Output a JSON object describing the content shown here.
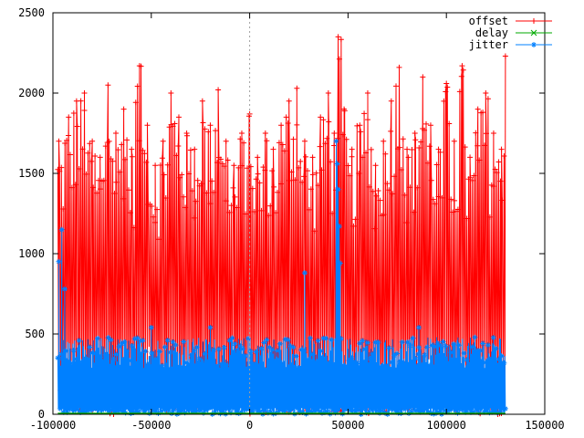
{
  "chart_data": {
    "type": "line",
    "title": "",
    "xlabel": "",
    "ylabel": "",
    "xlim": [
      -100000,
      150000
    ],
    "ylim": [
      0,
      2500
    ],
    "x_ticks": [
      -100000,
      -50000,
      0,
      50000,
      100000,
      150000
    ],
    "x_tick_labels": [
      "-100000",
      "-50000",
      "0",
      "50000",
      "100000",
      "150000"
    ],
    "y_ticks": [
      0,
      500,
      1000,
      1500,
      2000,
      2500
    ],
    "y_tick_labels": [
      "0",
      "500",
      "1000",
      "1500",
      "2000",
      "2500"
    ],
    "zero_line": "vertical dashed at x=0",
    "grid": false,
    "legend_position": "top-right",
    "series": [
      {
        "name": "offset",
        "color": "#ff0000",
        "marker": "plus",
        "x": [
          -97000,
          -92000,
          -88000,
          -84000,
          -80000,
          -76000,
          -72000,
          -68000,
          -64000,
          -60000,
          -56000,
          -52000,
          -48000,
          -44000,
          -40000,
          -36000,
          -32000,
          -28000,
          -24000,
          -20000,
          -16000,
          -12000,
          -8000,
          -4000,
          0,
          4000,
          8000,
          12000,
          16000,
          20000,
          24000,
          28000,
          32000,
          36000,
          40000,
          43000,
          45000,
          48000,
          52000,
          56000,
          60000,
          64000,
          68000,
          72000,
          76000,
          80000,
          84000,
          88000,
          92000,
          96000,
          100000,
          104000,
          108000,
          112000,
          116000,
          120000,
          124000,
          128000,
          130000
        ],
        "values": [
          1700,
          1850,
          1950,
          2000,
          1700,
          1600,
          2050,
          1750,
          1900,
          1650,
          2170,
          1800,
          1550,
          1700,
          2000,
          1850,
          1750,
          1650,
          1950,
          1800,
          2020,
          1700,
          1550,
          1750,
          1870,
          1600,
          1750,
          1650,
          1800,
          1950,
          2030,
          1700,
          1600,
          1850,
          2000,
          1750,
          2350,
          1900,
          1650,
          1800,
          2000,
          1550,
          1700,
          1950,
          2160,
          1650,
          1750,
          2100,
          1800,
          1650,
          2060,
          1700,
          2170,
          1600,
          1900,
          2000,
          1750,
          1650,
          2230
        ],
        "baseline_min": 0,
        "trough_values": [
          150,
          300,
          80,
          250,
          120,
          400,
          200,
          60,
          350,
          180,
          100,
          450,
          220,
          90,
          380,
          140,
          260,
          70,
          330,
          200,
          110,
          420,
          160,
          240,
          90,
          300,
          130,
          210,
          370,
          60,
          280,
          150,
          90,
          340,
          200,
          120,
          30,
          260,
          180,
          410,
          100,
          230,
          70,
          350,
          160,
          290,
          110,
          200,
          390,
          130,
          250,
          80,
          320,
          170,
          140,
          280,
          60,
          230,
          350
        ]
      },
      {
        "name": "delay",
        "color": "#00aa00",
        "marker": "cross",
        "description_value": 0
      },
      {
        "name": "jitter",
        "color": "#0080ff",
        "marker": "star",
        "typical_max": 480,
        "spikes": [
          {
            "x": -97000,
            "y": 950
          },
          {
            "x": -95500,
            "y": 1150
          },
          {
            "x": -94000,
            "y": 780
          },
          {
            "x": 28000,
            "y": 880
          },
          {
            "x": 44000,
            "y": 1700
          },
          {
            "x": 44500,
            "y": 1560
          },
          {
            "x": 45000,
            "y": 1400
          },
          {
            "x": 45500,
            "y": 1170
          },
          {
            "x": 46000,
            "y": 940
          },
          {
            "x": 86000,
            "y": 540
          },
          {
            "x": -50000,
            "y": 540
          },
          {
            "x": -20000,
            "y": 540
          }
        ]
      }
    ]
  }
}
